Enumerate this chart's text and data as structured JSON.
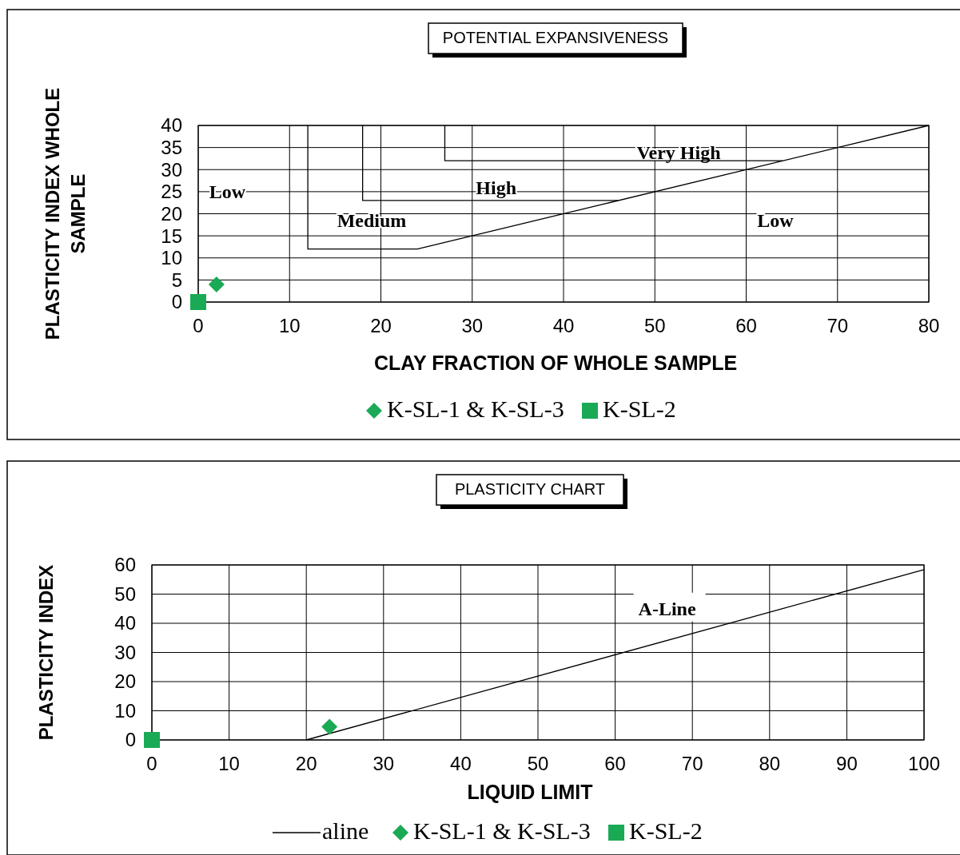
{
  "chart_data": [
    {
      "type": "scatter",
      "title": "POTENTIAL  EXPANSIVENESS",
      "xlabel": "CLAY  FRACTION  OF WHOLE  SAMPLE",
      "ylabel": "PLASTICITY INDEX WHOLE SAMPLE",
      "xlim": [
        0,
        80
      ],
      "ylim": [
        0,
        40
      ],
      "xticks": [
        0,
        10,
        20,
        30,
        40,
        50,
        60,
        70,
        80
      ],
      "yticks": [
        0,
        5,
        10,
        15,
        20,
        25,
        30,
        35,
        40
      ],
      "grid": true,
      "legend": "bottom",
      "series": [
        {
          "type": "line",
          "color": "#000000",
          "marker": "none",
          "x": [
            12,
            12,
            24,
            80
          ],
          "values": [
            40,
            12,
            12,
            40
          ]
        },
        {
          "type": "line",
          "color": "#000000",
          "marker": "none",
          "x": [
            18,
            18,
            46
          ],
          "values": [
            40,
            23,
            23
          ]
        },
        {
          "type": "line",
          "color": "#000000",
          "marker": "none",
          "x": [
            27,
            27,
            64
          ],
          "values": [
            40,
            32,
            32
          ]
        },
        {
          "name": "K-SL-1 & K-SL-3",
          "color": "#1aaa55",
          "marker": "diamond",
          "x": [
            2
          ],
          "values": [
            4
          ]
        },
        {
          "name": "K-SL-2",
          "color": "#1aaa55",
          "marker": "square",
          "x": [
            0
          ],
          "values": [
            0
          ]
        }
      ],
      "annotations": [
        "Low",
        "Medium",
        "High",
        "Very High",
        "Low"
      ]
    },
    {
      "type": "scatter",
      "title": "PLASTICITY  CHART",
      "xlabel": "LIQUID LIMIT",
      "ylabel": "PLASTICITY INDEX",
      "xlim": [
        0,
        100
      ],
      "ylim": [
        0,
        60
      ],
      "xticks": [
        0,
        10,
        20,
        30,
        40,
        50,
        60,
        70,
        80,
        90,
        100
      ],
      "yticks": [
        0,
        10,
        20,
        30,
        40,
        50,
        60
      ],
      "grid": true,
      "legend": "bottom",
      "series": [
        {
          "name": "aline",
          "type": "line",
          "color": "#000000",
          "marker": "none",
          "x": [
            20,
            100
          ],
          "values": [
            0,
            58.4
          ]
        },
        {
          "name": "K-SL-1 & K-SL-3",
          "color": "#1aaa55",
          "marker": "diamond",
          "x": [
            23
          ],
          "values": [
            4.5
          ]
        },
        {
          "name": "K-SL-2",
          "color": "#1aaa55",
          "marker": "square",
          "x": [
            0
          ],
          "values": [
            0
          ]
        }
      ],
      "annotations": [
        "A-Line"
      ]
    }
  ]
}
